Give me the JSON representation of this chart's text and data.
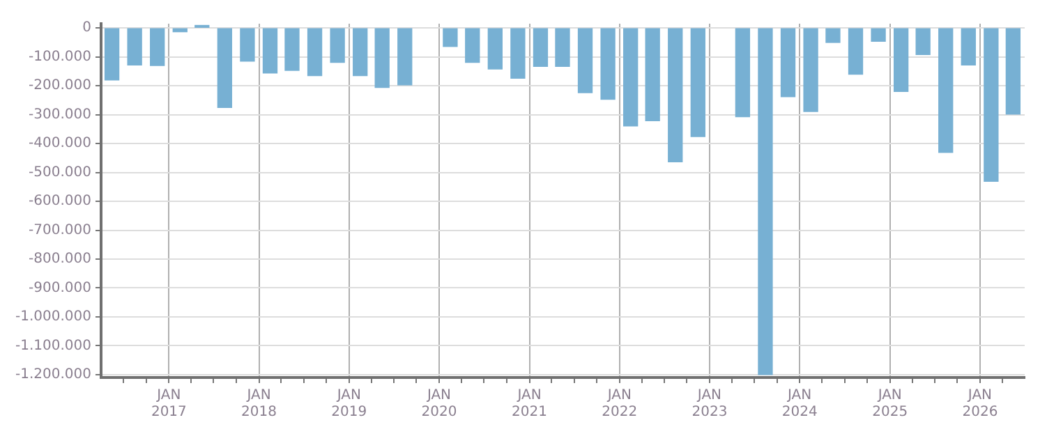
{
  "chart_data": {
    "type": "bar",
    "x": [
      "2016-05-15",
      "2016-08-15",
      "2016-11-15",
      "2017-02-15",
      "2017-05-15",
      "2017-08-15",
      "2017-11-15",
      "2018-02-15",
      "2018-05-15",
      "2018-08-15",
      "2018-11-15",
      "2019-02-15",
      "2019-05-15",
      "2019-08-15",
      "2019-11-15",
      "2020-02-15",
      "2020-05-15",
      "2020-08-15",
      "2020-11-15",
      "2021-02-15",
      "2021-05-15",
      "2021-08-15",
      "2021-11-15",
      "2022-02-15",
      "2022-05-15",
      "2022-08-15",
      "2022-11-15",
      "2023-02-15",
      "2023-05-15",
      "2023-08-15",
      "2023-11-15",
      "2024-02-15",
      "2024-05-15",
      "2024-08-15",
      "2024-11-15",
      "2025-02-15",
      "2025-05-15",
      "2025-08-15",
      "2025-11-15",
      "2026-02-15",
      "2026-05-15"
    ],
    "values": [
      -180000,
      -128000,
      -130000,
      -13000,
      9000,
      -275000,
      -115000,
      -156000,
      -147000,
      -165000,
      -119000,
      -165000,
      -206000,
      -197000,
      null,
      -64000,
      -119000,
      -142000,
      -174000,
      -133000,
      -133000,
      -224000,
      -247000,
      -339000,
      -321000,
      -463000,
      -376000,
      null,
      -307000,
      -1200000,
      -238000,
      -289000,
      -50000,
      -160000,
      -46000,
      -220000,
      -92000,
      -431000,
      -128000,
      -531000,
      -298000
    ],
    "color": "#77b0d3",
    "xlim": [
      "2016-04-01",
      "2026-07-01"
    ],
    "xticks": [
      {
        "value": "2016-07-01",
        "label": null
      },
      {
        "value": "2016-10-01",
        "label": null
      },
      {
        "value": "2017-01-01",
        "label": "JAN 2017"
      },
      {
        "value": "2017-04-01",
        "label": null
      },
      {
        "value": "2017-07-01",
        "label": null
      },
      {
        "value": "2017-10-01",
        "label": null
      },
      {
        "value": "2018-01-01",
        "label": "JAN 2018"
      },
      {
        "value": "2018-04-01",
        "label": null
      },
      {
        "value": "2018-07-01",
        "label": null
      },
      {
        "value": "2018-10-01",
        "label": null
      },
      {
        "value": "2019-01-01",
        "label": "JAN 2019"
      },
      {
        "value": "2019-04-01",
        "label": null
      },
      {
        "value": "2019-07-01",
        "label": null
      },
      {
        "value": "2019-10-01",
        "label": null
      },
      {
        "value": "2020-01-01",
        "label": "JAN 2020"
      },
      {
        "value": "2020-04-01",
        "label": null
      },
      {
        "value": "2020-07-01",
        "label": null
      },
      {
        "value": "2020-10-01",
        "label": null
      },
      {
        "value": "2021-01-01",
        "label": "JAN 2021"
      },
      {
        "value": "2021-04-01",
        "label": null
      },
      {
        "value": "2021-07-01",
        "label": null
      },
      {
        "value": "2021-10-01",
        "label": null
      },
      {
        "value": "2022-01-01",
        "label": "JAN 2022"
      },
      {
        "value": "2022-04-01",
        "label": null
      },
      {
        "value": "2022-07-01",
        "label": null
      },
      {
        "value": "2022-10-01",
        "label": null
      },
      {
        "value": "2023-01-01",
        "label": "JAN 2023"
      },
      {
        "value": "2023-04-01",
        "label": null
      },
      {
        "value": "2023-07-01",
        "label": null
      },
      {
        "value": "2023-10-01",
        "label": null
      },
      {
        "value": "2024-01-01",
        "label": "JAN 2024"
      },
      {
        "value": "2024-04-01",
        "label": null
      },
      {
        "value": "2024-07-01",
        "label": null
      },
      {
        "value": "2024-10-01",
        "label": null
      },
      {
        "value": "2025-01-01",
        "label": "JAN 2025"
      },
      {
        "value": "2025-04-01",
        "label": null
      },
      {
        "value": "2025-07-01",
        "label": null
      },
      {
        "value": "2025-10-01",
        "label": null
      },
      {
        "value": "2026-01-01",
        "label": "JAN 2026"
      },
      {
        "value": "2026-04-01",
        "label": null
      }
    ],
    "ylim": [
      -1210000,
      15000
    ],
    "yticks": [
      0,
      {
        "value": -100000,
        "label": "-100.000"
      },
      {
        "value": -200000,
        "label": "-200.000"
      },
      {
        "value": -300000,
        "label": "-300.000"
      },
      {
        "value": -400000,
        "label": "-400.000"
      },
      {
        "value": -500000,
        "label": "-500.000"
      },
      {
        "value": -600000,
        "label": "-600.000"
      },
      {
        "value": -700000,
        "label": "-700.000"
      },
      {
        "value": -800000,
        "label": "-800.000"
      },
      {
        "value": -900000,
        "label": "-900.000"
      },
      {
        "value": -1000000,
        "label": "-1.000.000"
      },
      {
        "value": -1100000,
        "label": "-1.100.000"
      },
      {
        "value": -1200000,
        "label": "-1.200.000"
      }
    ],
    "grid": true,
    "legend": false
  }
}
